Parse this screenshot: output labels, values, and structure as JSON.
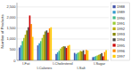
{
  "chart_data": {
    "type": "bar",
    "categories": [
      "l-Fat",
      "l-Calories",
      "l-Cholesterol",
      "l-Salt",
      "l-Sugar"
    ],
    "series": [
      {
        "name": "1988",
        "color": "#4455aa",
        "values": [
          600,
          700,
          300,
          350,
          150
        ]
      },
      {
        "name": "1989",
        "color": "#3399cc",
        "values": [
          700,
          800,
          380,
          300,
          170
        ]
      },
      {
        "name": "1990",
        "color": "#44bb88",
        "values": [
          900,
          900,
          450,
          350,
          200
        ]
      },
      {
        "name": "1991",
        "color": "#99cc33",
        "values": [
          1050,
          1050,
          550,
          380,
          230
        ]
      },
      {
        "name": "1992",
        "color": "#bbaa00",
        "values": [
          1200,
          1200,
          620,
          440,
          260
        ]
      },
      {
        "name": "1993",
        "color": "#888800",
        "values": [
          1400,
          1350,
          660,
          420,
          290
        ]
      },
      {
        "name": "1994",
        "color": "#444444",
        "values": [
          1550,
          1400,
          650,
          470,
          340
        ]
      },
      {
        "name": "1995",
        "color": "#cc0000",
        "values": [
          2100,
          1300,
          580,
          280,
          190
        ]
      },
      {
        "name": "1996",
        "color": "#ff8800",
        "values": [
          1700,
          1500,
          680,
          490,
          390
        ]
      },
      {
        "name": "1997",
        "color": "#ffcc00",
        "values": [
          1100,
          1550,
          720,
          460,
          480
        ]
      }
    ],
    "ylabel": "Number of Products",
    "ylim": [
      0,
      2700
    ],
    "yticks": [
      0,
      500,
      {
        "value": 1000,
        "label": "1,000"
      },
      {
        "value": 1500,
        "label": "1,500"
      },
      {
        "value": 2000,
        "label": "2,000"
      },
      {
        "value": 2500,
        "label": "2,500"
      }
    ],
    "grid": true,
    "legend": "right"
  }
}
